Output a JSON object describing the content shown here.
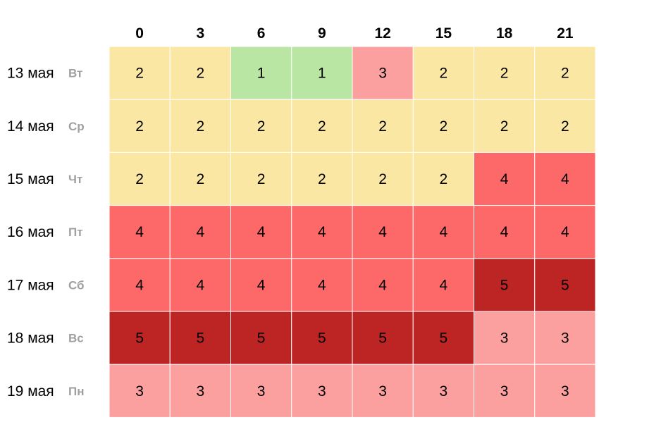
{
  "chart_data": {
    "type": "heatmap",
    "columns": [
      "0",
      "3",
      "6",
      "9",
      "12",
      "15",
      "18",
      "21"
    ],
    "rows": [
      {
        "date": "13 мая",
        "weekday": "Вт",
        "values": [
          2,
          2,
          1,
          1,
          3,
          2,
          2,
          2
        ]
      },
      {
        "date": "14 мая",
        "weekday": "Ср",
        "values": [
          2,
          2,
          2,
          2,
          2,
          2,
          2,
          2
        ]
      },
      {
        "date": "15 мая",
        "weekday": "Чт",
        "values": [
          2,
          2,
          2,
          2,
          2,
          2,
          4,
          4
        ]
      },
      {
        "date": "16 мая",
        "weekday": "Пт",
        "values": [
          4,
          4,
          4,
          4,
          4,
          4,
          4,
          4
        ]
      },
      {
        "date": "17 мая",
        "weekday": "Сб",
        "values": [
          4,
          4,
          4,
          4,
          4,
          4,
          5,
          5
        ]
      },
      {
        "date": "18 мая",
        "weekday": "Вс",
        "values": [
          5,
          5,
          5,
          5,
          5,
          5,
          3,
          3
        ]
      },
      {
        "date": "19 мая",
        "weekday": "Пн",
        "values": [
          3,
          3,
          3,
          3,
          3,
          3,
          3,
          3
        ]
      }
    ],
    "value_colors": {
      "1": "#b9e6a3",
      "2": "#fbe7a4",
      "3": "#fb9f9f",
      "4": "#fd6868",
      "5": "#bd2424"
    }
  }
}
